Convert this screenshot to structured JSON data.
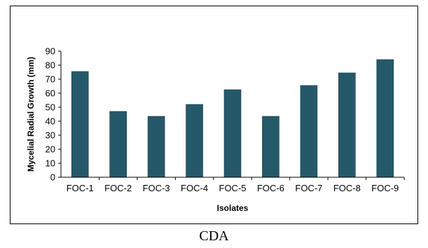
{
  "caption": "CDA",
  "chart_data": {
    "type": "bar",
    "categories": [
      "FOC-1",
      "FOC-2",
      "FOC-3",
      "FOC-4",
      "FOC-5",
      "FOC-6",
      "FOC-7",
      "FOC-8",
      "FOC-9"
    ],
    "values": [
      75.5,
      47,
      43.5,
      52,
      62.5,
      43.5,
      65.5,
      74.5,
      84
    ],
    "xlabel": "Isolates",
    "ylabel": "Mycelial Radial Growth (mm)",
    "ylim": [
      0,
      90
    ],
    "yticks": [
      0,
      10,
      20,
      30,
      40,
      50,
      60,
      70,
      80,
      90
    ],
    "grid": false,
    "bar_color": "#25596a"
  }
}
